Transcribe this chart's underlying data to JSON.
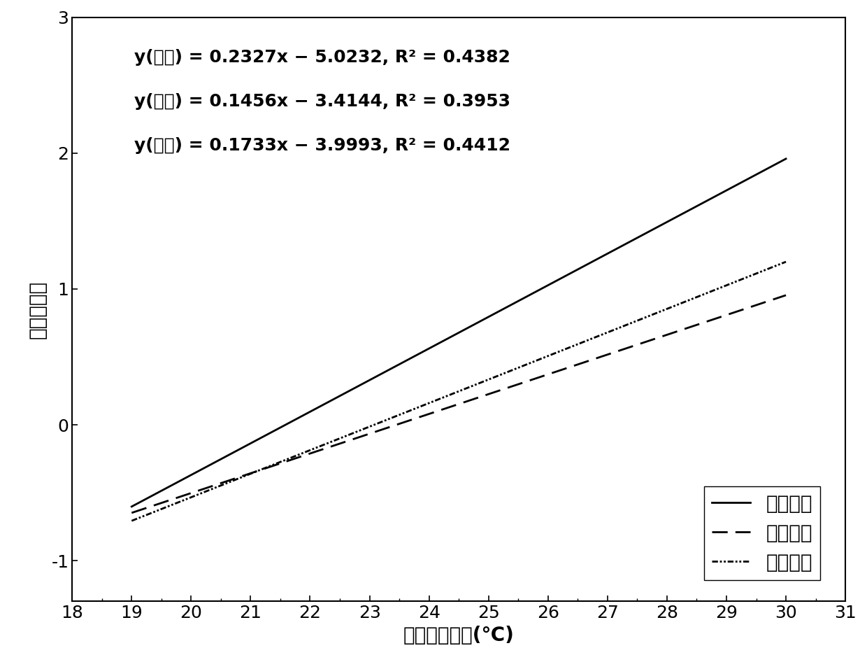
{
  "line1": {
    "slope": 0.2327,
    "intercept": -5.0232,
    "r2": 0.4382,
    "label": "供暖初期",
    "linestyle": "solid",
    "color": "black"
  },
  "line2": {
    "slope": 0.1456,
    "intercept": -3.4144,
    "r2": 0.3953,
    "label": "供暖中期",
    "linestyle": "dashed",
    "color": "black"
  },
  "line3": {
    "slope": 0.1733,
    "intercept": -3.9993,
    "r2": 0.4412,
    "label": "供暖末期",
    "linestyle": "dashdot",
    "color": "black"
  },
  "xlim": [
    18,
    31
  ],
  "ylim": [
    -1.3,
    2.2
  ],
  "xticks": [
    18,
    19,
    20,
    21,
    22,
    23,
    24,
    25,
    26,
    27,
    28,
    29,
    30,
    31
  ],
  "yticks": [
    -1,
    0,
    1,
    2,
    3
  ],
  "xlabel": "室内空气温度(℃)",
  "ylabel": "平均热感觉",
  "eq1": "y(初期) = 0.2327x − 5.0232, R² = 0.4382",
  "eq2": "y(中期) = 0.1456x − 3.4144, R² = 0.3953",
  "eq3": "y(末期) = 0.1733x − 3.9993, R² = 0.4412",
  "x_range_start": 19,
  "x_range_end": 30,
  "background_color": "white",
  "linewidth": 2.0,
  "fontsize_annotation": 18,
  "fontsize_label": 20,
  "fontsize_tick": 18,
  "fontsize_legend": 20
}
